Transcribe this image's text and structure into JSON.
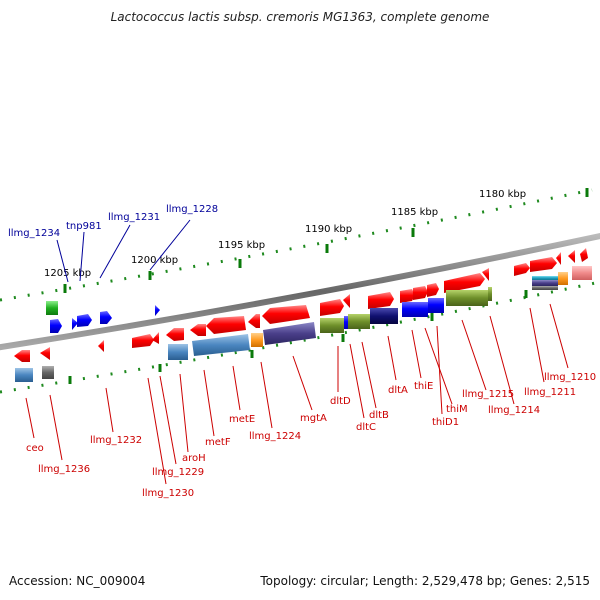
{
  "title": "Lactococcus lactis subsp. cremoris MG1363, complete genome",
  "footer": {
    "accession": "Accession: NC_009004",
    "topology": "Topology: circular; Length: 2,529,478 bp; Genes: 2,515"
  },
  "scale_ticks": [
    "1180 kbp",
    "1185 kbp",
    "1190 kbp",
    "1195 kbp",
    "1200 kbp",
    "1205 kbp"
  ],
  "gene_labels_top": [
    "llmg_1234",
    "tnp981",
    "llmg_1231",
    "llmg_1228"
  ],
  "gene_labels_bottom": [
    "ceo",
    "llmg_1236",
    "llmg_1232",
    "llmg_1229",
    "llmg_1230",
    "aroH",
    "metF",
    "metE",
    "llmg_1224",
    "mgtA",
    "dltD",
    "dltC",
    "dltB",
    "dltA",
    "thiE",
    "thiM",
    "thiD1",
    "llmg_1215",
    "llmg_1214",
    "llmg_1211",
    "llmg_1210"
  ],
  "colors": {
    "forward_gene": "#ff0000",
    "transposase": "#0000ff",
    "top_label": "#000099",
    "bottom_label": "#cc0000",
    "tick": "#008000",
    "backbone": "#777777"
  }
}
